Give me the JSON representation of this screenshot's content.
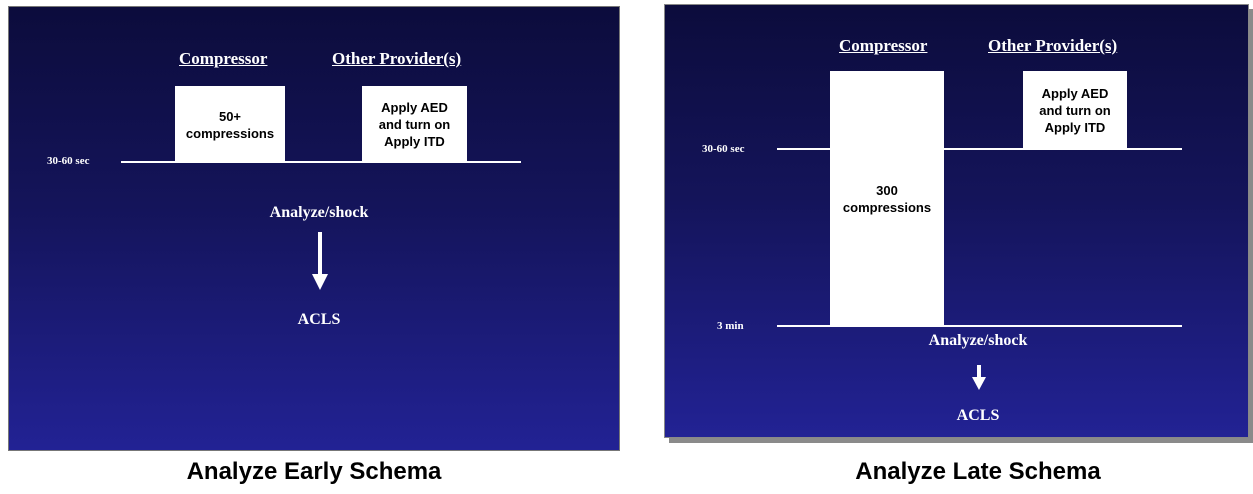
{
  "left_diagram": {
    "compressor_header": "Compressor",
    "other_header": "Other Provider(s)",
    "compressor_box": "50+\ncompressions",
    "other_box": "Apply AED\nand turn on\nApply ITD",
    "time_label": "30-60 sec",
    "analyze": "Analyze/shock",
    "acls": "ACLS",
    "caption": "Analyze Early Schema"
  },
  "right_diagram": {
    "compressor_header": "Compressor",
    "other_header": "Other Provider(s)",
    "compressor_box": "300\ncompressions",
    "other_box": "Apply AED\nand turn on\nApply ITD",
    "time_label_1": "30-60 sec",
    "time_label_2": "3 min",
    "analyze": "Analyze/shock",
    "acls": "ACLS",
    "caption": "Analyze Late Schema"
  },
  "colors": {
    "slide_top": "#0c0c3c",
    "slide_bottom": "#222294",
    "box": "#ffffff",
    "line": "#ffffff"
  }
}
